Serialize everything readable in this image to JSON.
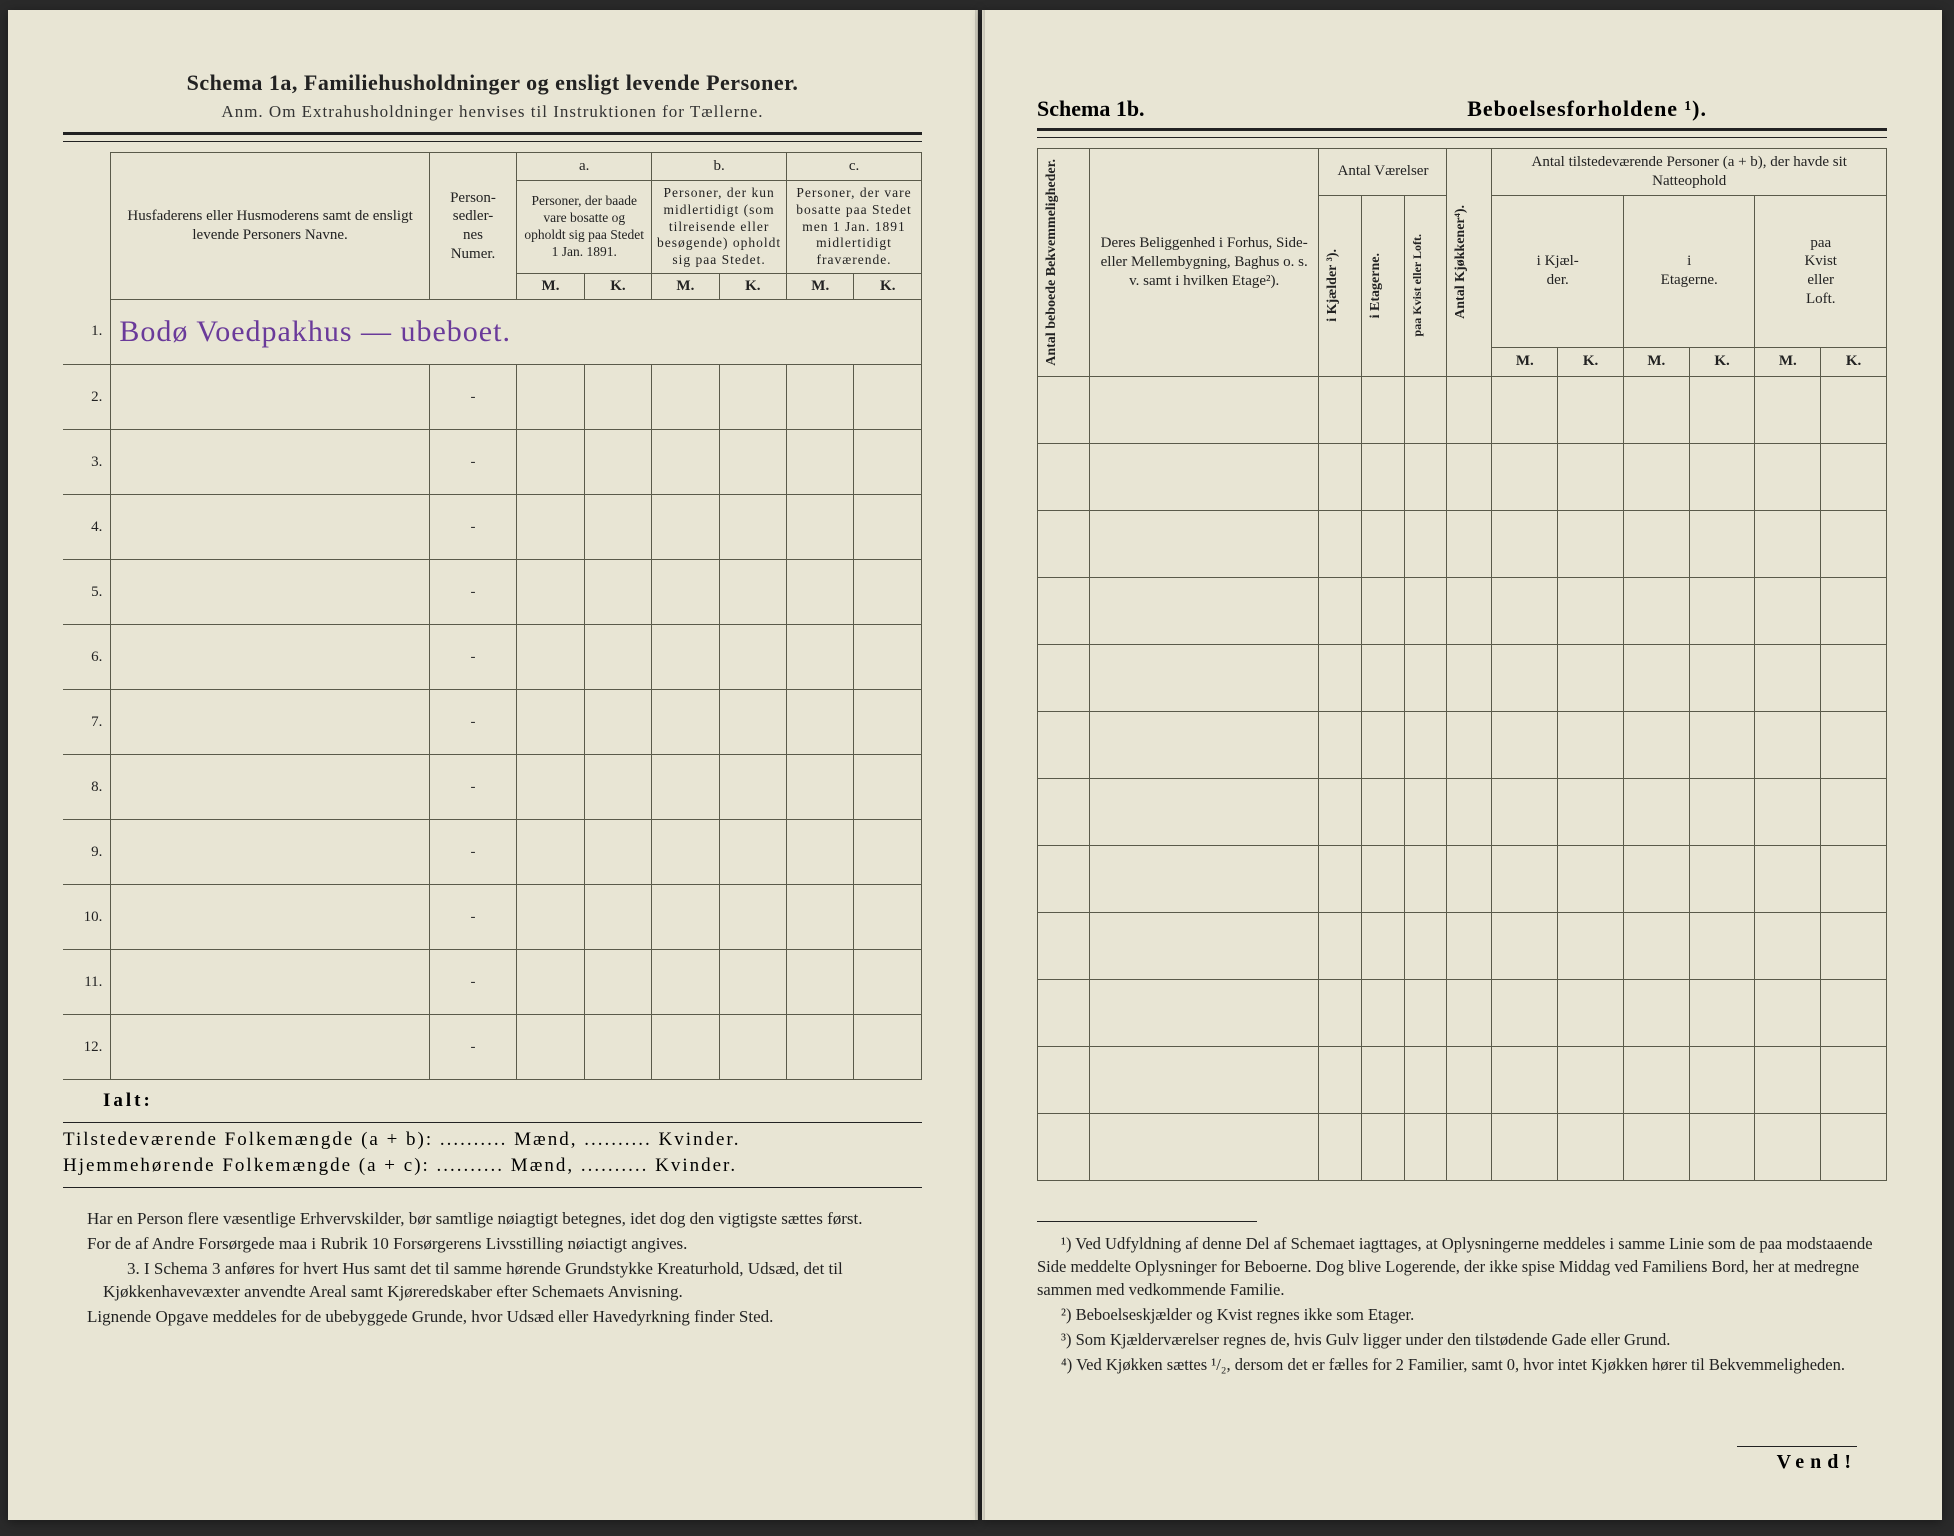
{
  "left": {
    "schema_title": "Schema 1a,   Familiehusholdninger og ensligt levende Personer.",
    "anm": "Anm. Om Extrahusholdninger henvises til Instruktionen for Tællerne.",
    "col_names": "Husfaderens eller Husmoderens samt de ensligt levende Personers Navne.",
    "col_numer": "Person-\nsedler-\nnes\nNumer.",
    "abc": {
      "a": "a.",
      "b": "b.",
      "c": "c."
    },
    "col_a": "Personer, der baade vare bosatte og opholdt sig paa Stedet 1 Jan. 1891.",
    "col_b": "Personer, der kun midlertidigt (som tilreisende eller besøgende) opholdt sig paa Stedet.",
    "col_c": "Personer, der vare bosatte paa Stedet men 1 Jan. 1891 midlertidigt fraværende.",
    "mk": {
      "m": "M.",
      "k": "K."
    },
    "rows": [
      {
        "n": "1.",
        "name": "Bodø Voedpakhus — ubeboet.",
        "dash": ""
      },
      {
        "n": "2.",
        "name": "",
        "dash": "-"
      },
      {
        "n": "3.",
        "name": "",
        "dash": "-"
      },
      {
        "n": "4.",
        "name": "",
        "dash": "-"
      },
      {
        "n": "5.",
        "name": "",
        "dash": "-"
      },
      {
        "n": "6.",
        "name": "",
        "dash": "-"
      },
      {
        "n": "7.",
        "name": "",
        "dash": "-"
      },
      {
        "n": "8.",
        "name": "",
        "dash": "-"
      },
      {
        "n": "9.",
        "name": "",
        "dash": "-"
      },
      {
        "n": "10.",
        "name": "",
        "dash": "-"
      },
      {
        "n": "11.",
        "name": "",
        "dash": "-"
      },
      {
        "n": "12.",
        "name": "",
        "dash": "-"
      }
    ],
    "ialt": "Ialt:",
    "sum1_a": "Tilstedeværende Folkemængde (a + b):",
    "sum2_a": "Hjemmehørende Folkemængde (a + c):",
    "dots": "..........",
    "maend": "Mænd,",
    "kvinder": "Kvinder.",
    "notes": {
      "p1": "Har en Person flere væsentlige Erhvervskilder, bør samtlige nøiagtigt betegnes, idet dog den vigtigste sættes først.",
      "p2": "For de af Andre Forsørgede maa i Rubrik 10 Forsørgerens Livsstilling nøiactigt angives.",
      "p3_label": "3.",
      "p3": "I Schema 3 anføres for hvert Hus samt det til samme hørende Grundstykke Kreaturhold, Udsæd, det til Kjøkkenhavevæxter anvendte Areal samt Kjøreredskaber efter Schemaets Anvisning.",
      "p4": "Lignende Opgave meddeles for de ubebyggede Grunde, hvor Udsæd eller Havedyrkning finder Sted."
    }
  },
  "right": {
    "schema_label": "Schema 1b.",
    "schema_title": "Beboelsesforholdene ¹).",
    "col_antal_bekv": "Antal beboede\nBekvemmeligheder.",
    "col_beligg": "Deres Beliggenhed i Forhus, Side- eller Mellembygning, Baghus o. s. v. samt i hvilken Etage²).",
    "col_antal_vaer": "Antal\nVærelser",
    "col_kjokken": "Antal Kjøkkener⁴).",
    "col_tilstede_top": "Antal tilstedeværende Personer (a + b), der havde sit Natteophold",
    "sub_kjaelder": "i Kjælder ³).",
    "sub_etagerne_v": "i Etagerne.",
    "sub_kvist_v": "paa Kvist eller\nLoft.",
    "sub_kjael": "i Kjæl-\nder.",
    "sub_etagerne": "i\nEtagerne.",
    "sub_kvist": "paa\nKvist\neller\nLoft.",
    "mk": {
      "m": "M.",
      "k": "K."
    },
    "row_count": 12,
    "footnotes": {
      "f1": "¹) Ved Udfyldning af denne Del af Schemaet iagttages, at Oplysningerne meddeles i samme Linie som de paa modstaaende Side meddelte Oplysninger for Beboerne. Dog blive Logerende, der ikke spise Middag ved Familiens Bord, her at medregne sammen med vedkommende Familie.",
      "f2": "²) Beboelseskjælder og Kvist regnes ikke som Etager.",
      "f3": "³) Som Kjælderværelser regnes de, hvis Gulv ligger under den tilstødende Gade eller Grund.",
      "f4": "⁴) Ved Kjøkken sættes ¹/₂, dersom det er fælles for 2 Familier, samt 0, hvor intet Kjøkken hører til Bekvemmeligheden."
    },
    "vend": "Vend!"
  }
}
